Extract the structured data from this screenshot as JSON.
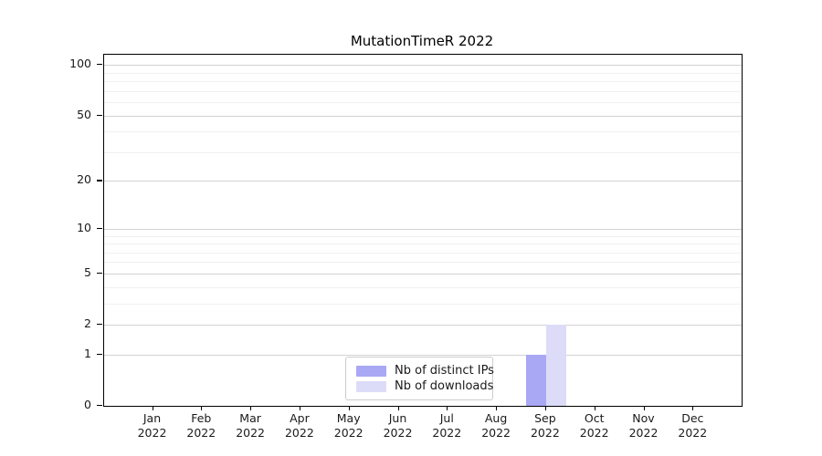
{
  "chart_data": {
    "type": "bar",
    "title": "MutationTimeR 2022",
    "categories": [
      "Jan",
      "Feb",
      "Mar",
      "Apr",
      "May",
      "Jun",
      "Jul",
      "Aug",
      "Sep",
      "Oct",
      "Nov",
      "Dec"
    ],
    "category_year": "2022",
    "series": [
      {
        "name": "Nb of distinct IPs",
        "color": "#a8a8f4",
        "values": [
          0,
          0,
          0,
          0,
          0,
          0,
          0,
          0,
          1,
          0,
          0,
          0
        ]
      },
      {
        "name": "Nb of downloads",
        "color": "#dcdcf8",
        "values": [
          0,
          0,
          0,
          0,
          0,
          0,
          0,
          0,
          2,
          0,
          0,
          0
        ]
      }
    ],
    "xlabel": "",
    "ylabel": "",
    "y_scale": "log1p",
    "ylim": [
      0,
      115
    ],
    "y_ticks": [
      0,
      1,
      2,
      5,
      10,
      20,
      50,
      100
    ],
    "y_minor_gridlines": [
      3,
      4,
      6,
      7,
      8,
      9,
      30,
      40,
      60,
      70,
      80,
      90
    ],
    "grid": "horizontal-major-and-minor",
    "legend_position": "inside-lower-center",
    "colors": {
      "major_grid": "#d2d2d2",
      "minor_grid": "#f0f0f0",
      "spine": "#000000",
      "text": "#1a1a1a",
      "legend_border": "#cccccc",
      "background": "#ffffff"
    }
  }
}
